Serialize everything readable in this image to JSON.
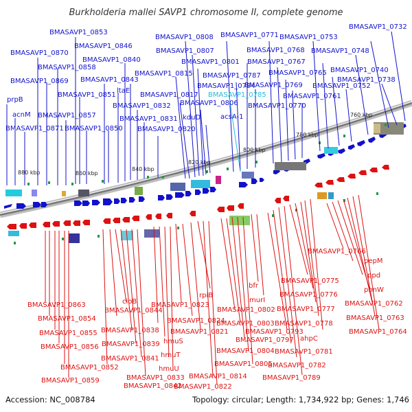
{
  "title": "Burkholderia mallei SAVP1 chromosome II, complete genome",
  "accession": "Accession: NC_008784",
  "topology": "Topology: circular; Length: 1,734,922 bp; Genes: 1,746",
  "colors": {
    "forward": "#1111cc",
    "reverse": "#dd1111",
    "highlight": "#22bbdd",
    "backbone": "#999999"
  },
  "ticks": [
    "880 kbp",
    "860 kbp",
    "840 kbp",
    "820 kbp",
    "800 kbp",
    "780 kbp",
    "760 kbp"
  ],
  "top_labels": [
    "BMASAVP1_0853",
    "BMASAVP1_0870",
    "BMASAVP1_0858",
    "BMASAVP1_0869",
    "prpB",
    "acnM",
    "BMASAVP1_0871",
    "BMASAVP1_0846",
    "BMASAVP1_0840",
    "BMASAVP1_0843",
    "BMASAVP1_0851",
    "ltaE",
    "BMASAVP1_0857",
    "BMASAVP1_0832",
    "BMASAVP1_0831",
    "BMASAVP1_0850",
    "BMASAVP1_0820",
    "BMASAVP1_0808",
    "BMASAVP1_0807",
    "BMASAVP1_0801",
    "BMASAVP1_0815",
    "BMASAVP1_0817",
    "BMASAVP1_0806",
    "kduD",
    "BMASAVP1_0771",
    "BMASAVP1_0787",
    "BMASAVP1_0794",
    "BMASAVP1_0785",
    "acsA-1",
    "BMASAVP1_0732",
    "BMASAVP1_0753",
    "BMASAVP1_0768",
    "BMASAVP1_0748",
    "BMASAVP1_0767",
    "BMASAVP1_0738",
    "BMASAVP1_0765",
    "BMASAVP1_0740",
    "BMASAVP1_0769",
    "BMASAVP1_0752",
    "BMASAVP1_0761",
    "BMASAVP1_0770"
  ],
  "bottom_labels": [
    "BMASAVP1_0766",
    "pepM",
    "ppd",
    "phnW",
    "BMASAVP1_0762",
    "BMASAVP1_0763",
    "BMASAVP1_0764",
    "BMASAVP1_0775",
    "BMASAVP1_0776",
    "BMASAVP1_0777",
    "BMASAVP1_0778",
    "ahpC",
    "BMASAVP1_0781",
    "BMASAVP1_0782",
    "BMASAVP1_0789",
    "rpiB",
    "bfr",
    "murI",
    "BMASAVP1_0802",
    "BMASAVP1_0803",
    "BMASAVP1_0793",
    "BMASAVP1_0797",
    "BMASAVP1_0804",
    "BMASAVP1_0805",
    "BMASAVP1_0814",
    "BMASAVP1_0822",
    "BMASAVP1_0823",
    "BMASAVP1_0824",
    "BMASAVP1_0821",
    "cioB",
    "BMASAVP1_0844",
    "BMASAVP1_0838",
    "hmuS",
    "BMASAVP1_0839",
    "hmuT",
    "BMASAVP1_0841",
    "hmuU",
    "BMASAVP1_0833",
    "BMASAVP1_0842",
    "BMASAVP1_0863",
    "BMASAVP1_0854",
    "BMASAVP1_0855",
    "BMASAVP1_0856",
    "BMASAVP1_0852",
    "BMASAVP1_0859"
  ]
}
